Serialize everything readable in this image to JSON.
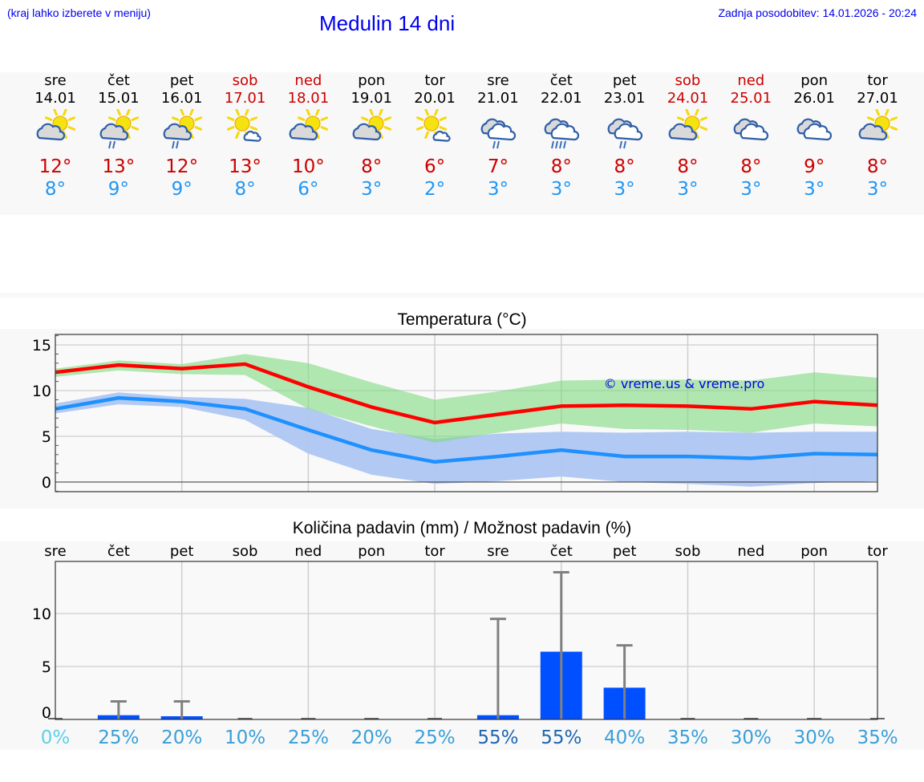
{
  "header": {
    "menu_hint": "(kraj lahko izberete v meniju)",
    "title": "Medulin 14 dni",
    "last_update": "Zadnja posodobitev: 14.01.2026 - 20:24"
  },
  "days": [
    {
      "name": "sre",
      "date": "14.01",
      "weekend": false,
      "icon": "sun-cloud-icon",
      "tmax": "12°",
      "tmin": "8°"
    },
    {
      "name": "čet",
      "date": "15.01",
      "weekend": false,
      "icon": "sun-cloud-light-rain-icon",
      "tmax": "13°",
      "tmin": "9°"
    },
    {
      "name": "pet",
      "date": "16.01",
      "weekend": false,
      "icon": "sun-cloud-light-rain-icon",
      "tmax": "12°",
      "tmin": "9°"
    },
    {
      "name": "sob",
      "date": "17.01",
      "weekend": true,
      "icon": "mostly-sunny-icon",
      "tmax": "13°",
      "tmin": "8°"
    },
    {
      "name": "ned",
      "date": "18.01",
      "weekend": true,
      "icon": "sun-cloud-icon",
      "tmax": "10°",
      "tmin": "6°"
    },
    {
      "name": "pon",
      "date": "19.01",
      "weekend": false,
      "icon": "sun-cloud-icon",
      "tmax": "8°",
      "tmin": "3°"
    },
    {
      "name": "tor",
      "date": "20.01",
      "weekend": false,
      "icon": "mostly-sunny-icon",
      "tmax": "6°",
      "tmin": "2°"
    },
    {
      "name": "sre",
      "date": "21.01",
      "weekend": false,
      "icon": "cloudy-light-rain-icon",
      "tmax": "7°",
      "tmin": "3°"
    },
    {
      "name": "čet",
      "date": "22.01",
      "weekend": false,
      "icon": "cloudy-rain-icon",
      "tmax": "8°",
      "tmin": "3°"
    },
    {
      "name": "pet",
      "date": "23.01",
      "weekend": false,
      "icon": "cloudy-light-rain-icon",
      "tmax": "8°",
      "tmin": "3°"
    },
    {
      "name": "sob",
      "date": "24.01",
      "weekend": true,
      "icon": "sun-cloud-icon",
      "tmax": "8°",
      "tmin": "3°"
    },
    {
      "name": "ned",
      "date": "25.01",
      "weekend": true,
      "icon": "cloudy-icon",
      "tmax": "8°",
      "tmin": "3°"
    },
    {
      "name": "pon",
      "date": "26.01",
      "weekend": false,
      "icon": "cloudy-icon",
      "tmax": "9°",
      "tmin": "3°"
    },
    {
      "name": "tor",
      "date": "27.01",
      "weekend": false,
      "icon": "sun-cloud-icon",
      "tmax": "8°",
      "tmin": "3°"
    }
  ],
  "colors": {
    "tmax_line": "#ff0000",
    "tmin_line": "#1e90ff",
    "tmax_band": "#aee9ae",
    "tmin_band": "#aec7f2",
    "overlap_band": "#7ec8a8",
    "precip_bar": "#0050ff",
    "error_bar": "#808080",
    "weekend_text": "#cc0000",
    "header_text": "#0000ee",
    "watermark": "#0000ee"
  },
  "chart_data": [
    {
      "type": "line",
      "title": "Temperatura (°C)",
      "xlabel": "",
      "ylabel": "",
      "ylim": [
        -1,
        16.2
      ],
      "yticks": [
        0,
        5,
        10,
        15
      ],
      "grid": true,
      "watermark": "© vreme.us & vreme.pro",
      "categories": [
        "14.01",
        "15.01",
        "16.01",
        "17.01",
        "18.01",
        "19.01",
        "20.01",
        "21.01",
        "22.01",
        "23.01",
        "24.01",
        "25.01",
        "26.01",
        "27.01"
      ],
      "series": [
        {
          "name": "Tmax",
          "values": [
            12.0,
            12.8,
            12.4,
            12.9,
            10.4,
            8.2,
            6.5,
            7.4,
            8.3,
            8.4,
            8.3,
            8.0,
            8.8,
            8.4
          ]
        },
        {
          "name": "Tmax band upper",
          "values": [
            12.4,
            13.3,
            12.9,
            14.0,
            13.0,
            10.9,
            9.0,
            9.9,
            11.1,
            11.2,
            11.2,
            11.1,
            12.0,
            11.4
          ]
        },
        {
          "name": "Tmax band lower",
          "values": [
            11.5,
            12.2,
            11.8,
            11.7,
            8.0,
            6.1,
            4.3,
            5.4,
            6.4,
            5.8,
            5.7,
            5.4,
            6.4,
            6.1
          ]
        },
        {
          "name": "Tmin",
          "values": [
            8.0,
            9.2,
            8.8,
            8.0,
            5.7,
            3.5,
            2.2,
            2.8,
            3.5,
            2.8,
            2.8,
            2.6,
            3.1,
            3.0
          ]
        },
        {
          "name": "Tmin band upper",
          "values": [
            8.6,
            9.8,
            9.3,
            9.1,
            8.1,
            5.8,
            4.7,
            5.3,
            5.5,
            5.4,
            5.5,
            5.4,
            5.5,
            5.5
          ]
        },
        {
          "name": "Tmin band lower",
          "values": [
            7.5,
            8.5,
            8.2,
            6.8,
            3.1,
            0.8,
            -0.2,
            0.1,
            0.6,
            0.0,
            -0.2,
            -0.5,
            -0.1,
            0.1
          ]
        }
      ]
    },
    {
      "type": "bar",
      "title": "Količina padavin (mm) / Možnost padavin (%)",
      "xlabel": "",
      "ylabel": "",
      "ylim": [
        0,
        15
      ],
      "yticks": [
        0,
        5,
        10
      ],
      "grid": true,
      "categories": [
        "sre",
        "čet",
        "pet",
        "sob",
        "ned",
        "pon",
        "tor",
        "sre",
        "čet",
        "pet",
        "sob",
        "ned",
        "pon",
        "tor"
      ],
      "series": [
        {
          "name": "Količina padavin (mm)",
          "values": [
            0,
            0.4,
            0.3,
            0,
            0,
            0,
            0,
            0.4,
            6.4,
            3.0,
            0,
            0,
            0,
            0
          ]
        },
        {
          "name": "Max (error bar, mm)",
          "values": [
            0,
            1.7,
            1.7,
            0,
            0,
            0,
            0,
            9.5,
            13.9,
            7.0,
            0,
            0,
            0,
            0
          ]
        },
        {
          "name": "Možnost padavin (%)",
          "values": [
            0,
            25,
            20,
            10,
            25,
            20,
            25,
            55,
            55,
            40,
            35,
            30,
            30,
            35
          ]
        }
      ],
      "probability_labels": [
        "0%",
        "25%",
        "20%",
        "10%",
        "25%",
        "20%",
        "25%",
        "55%",
        "55%",
        "40%",
        "35%",
        "30%",
        "30%",
        "35%"
      ]
    }
  ],
  "temp_chart": {
    "title": "Temperatura (°C)",
    "watermark": "© vreme.us & vreme.pro",
    "yticks": [
      "0",
      "5",
      "10",
      "15"
    ]
  },
  "precip_chart": {
    "title": "Količina padavin (mm) / Možnost padavin (%)",
    "yticks": [
      "0",
      "5",
      "10"
    ]
  }
}
